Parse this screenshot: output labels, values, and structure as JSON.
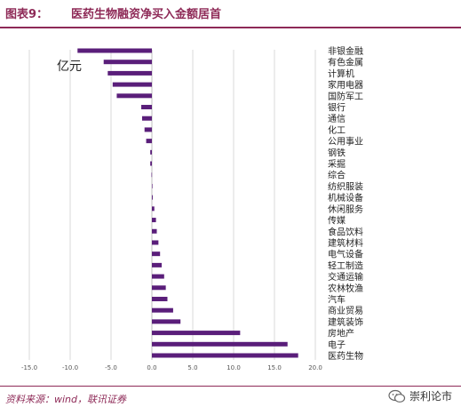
{
  "header": {
    "fig_label": "图表9：",
    "title": "医药生物融资净买入金额居首"
  },
  "unit_label": "亿元",
  "source": "资料来源：wind，联讯证券",
  "watermark": {
    "text": "崇利论市",
    "icon": "wechat-icon"
  },
  "colors": {
    "bar": "#5a1e7a",
    "accent": "#8e2a57",
    "grid": "#d9d9d9"
  },
  "chart_data": {
    "type": "bar",
    "orientation": "horizontal",
    "categories": [
      "非银金融",
      "有色金属",
      "计算机",
      "家用电器",
      "国防军工",
      "银行",
      "通信",
      "化工",
      "公用事业",
      "钢铁",
      "采掘",
      "综合",
      "纺织服装",
      "机械设备",
      "休闲服务",
      "传媒",
      "食品饮料",
      "建筑材料",
      "电气设备",
      "轻工制造",
      "交通运输",
      "农林牧渔",
      "汽车",
      "商业贸易",
      "建筑装饰",
      "房地产",
      "电子",
      "医药生物"
    ],
    "values": [
      -9.1,
      -5.9,
      -5.4,
      -4.8,
      -4.3,
      -1.3,
      -1.2,
      -0.9,
      -0.7,
      -0.2,
      -0.2,
      -0.05,
      0.02,
      0.1,
      0.3,
      0.5,
      0.6,
      0.8,
      1.0,
      1.2,
      1.5,
      1.7,
      1.9,
      2.6,
      3.5,
      10.8,
      16.6,
      17.9
    ],
    "xlim": [
      -15,
      20
    ],
    "xticks": [
      "-15.0",
      "-10.0",
      "-5.0",
      "0.0",
      "5.0",
      "10.0",
      "15.0",
      "20.0"
    ],
    "grid": true
  }
}
